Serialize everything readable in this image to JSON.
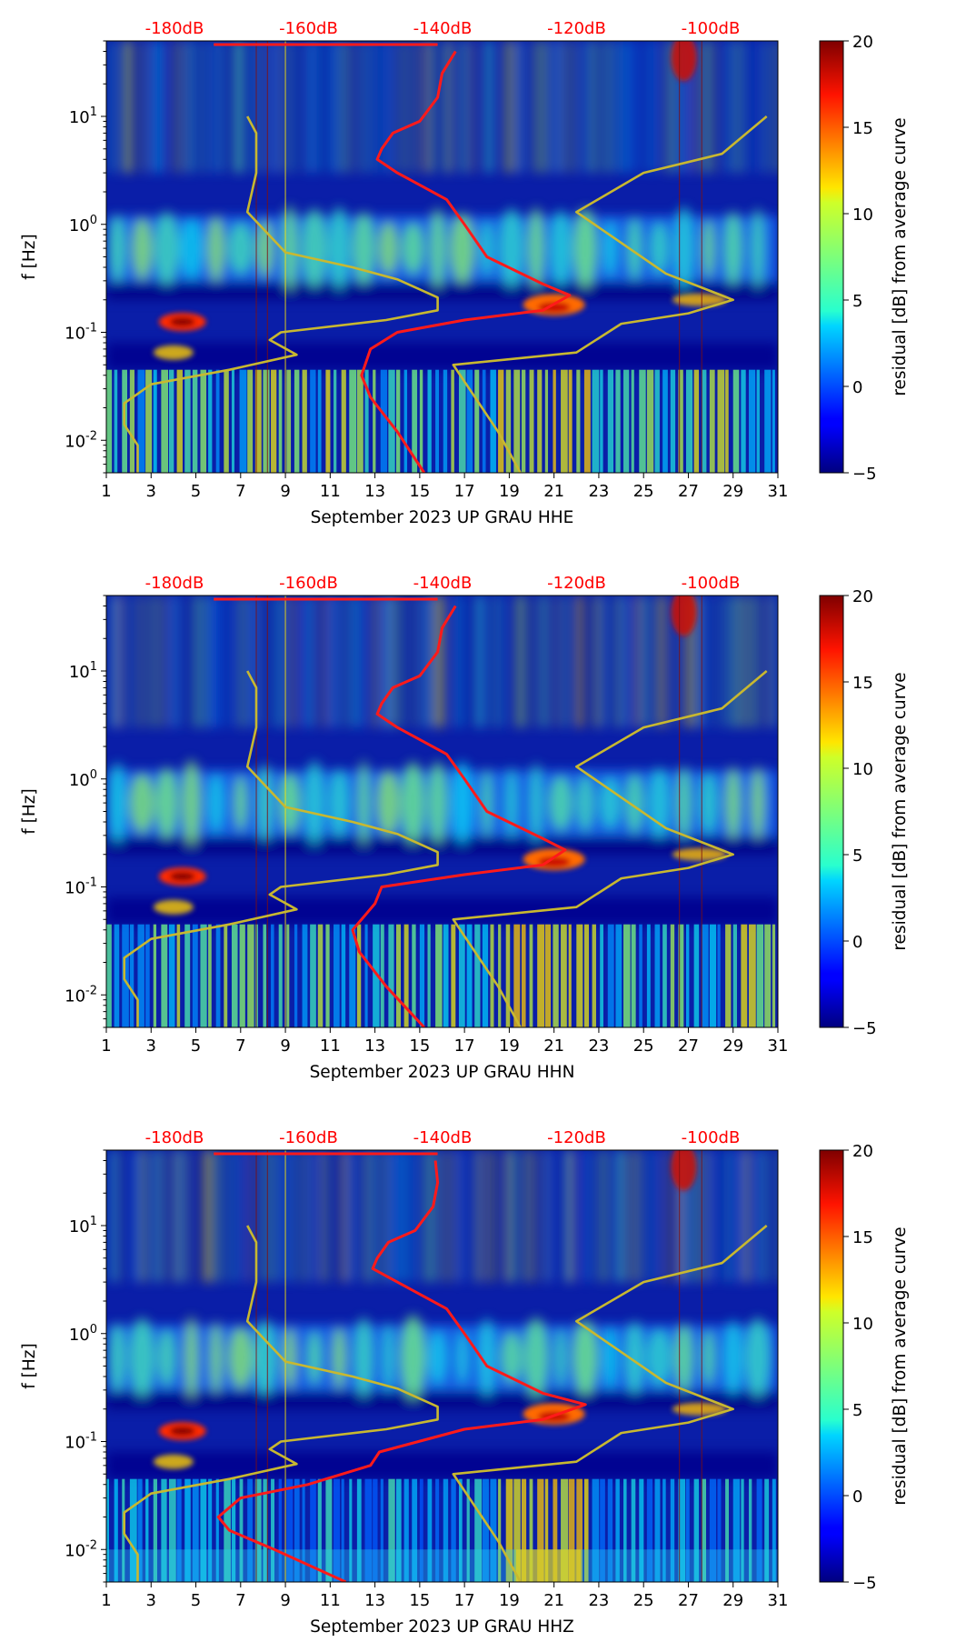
{
  "figure": {
    "colorbar_label": "residual [dB] from average curve",
    "colorbar_ticks": [
      -5,
      0,
      5,
      10,
      15,
      20
    ],
    "top_db_labels": [
      "-180dB",
      "-160dB",
      "-140dB",
      "-120dB",
      "-100dB"
    ],
    "y_label": "f [Hz]",
    "colors": {
      "db_label": "#ff0000",
      "noise_curve": "#ff1a1a",
      "nlnm_nhnm": "#c8b830",
      "background": "#00007f"
    }
  },
  "chart_data": [
    {
      "type": "heatmap",
      "title": "",
      "xlabel": "September 2023 UP GRAU  HHE",
      "ylabel": "f [Hz]",
      "x_ticks": [
        1,
        3,
        5,
        7,
        9,
        11,
        13,
        15,
        17,
        19,
        21,
        23,
        25,
        27,
        29,
        31
      ],
      "xlim": [
        1,
        31
      ],
      "y_ticks": [
        "10^-2",
        "10^-1",
        "10^0",
        "10^1"
      ],
      "ylim": [
        0.005,
        50
      ],
      "colorbar": {
        "label": "residual [dB] from average curve",
        "ticks": [
          -5,
          0,
          5,
          10,
          15,
          20
        ],
        "range": [
          -5,
          20
        ]
      },
      "top_axis": {
        "labels": [
          "-180dB",
          "-160dB",
          "-140dB",
          "-120dB",
          "-100dB"
        ]
      },
      "series": [
        {
          "name": "median noise",
          "color": "#ff1a1a",
          "points": [
            [
              15.2,
              0.005
            ],
            [
              14,
              0.012
            ],
            [
              12.8,
              0.025
            ],
            [
              12.4,
              0.04
            ],
            [
              12.8,
              0.07
            ],
            [
              14,
              0.1
            ],
            [
              17,
              0.13
            ],
            [
              20.5,
              0.16
            ],
            [
              21.7,
              0.22
            ],
            [
              20.5,
              0.28
            ],
            [
              18,
              0.5
            ],
            [
              17,
              1
            ],
            [
              16.2,
              1.7
            ],
            [
              14,
              3
            ],
            [
              13.1,
              4
            ],
            [
              13.3,
              5
            ],
            [
              13.8,
              7
            ],
            [
              15,
              9
            ],
            [
              15.8,
              15
            ],
            [
              16,
              25
            ],
            [
              16.6,
              40
            ]
          ]
        },
        {
          "name": "low noise model",
          "color": "#c8b830",
          "points": [
            [
              2.4,
              0.005
            ],
            [
              2.4,
              0.009
            ],
            [
              1.8,
              0.014
            ],
            [
              1.8,
              0.022
            ],
            [
              3,
              0.033
            ],
            [
              6.5,
              0.045
            ],
            [
              9.5,
              0.062
            ],
            [
              8.3,
              0.085
            ],
            [
              8.8,
              0.1
            ],
            [
              13.5,
              0.13
            ],
            [
              15.8,
              0.16
            ],
            [
              15.8,
              0.21
            ],
            [
              14,
              0.31
            ],
            [
              12,
              0.4
            ],
            [
              9,
              0.55
            ],
            [
              7.3,
              1.3
            ],
            [
              7.7,
              3
            ],
            [
              7.7,
              5
            ],
            [
              7.7,
              7
            ],
            [
              7.3,
              10
            ]
          ]
        },
        {
          "name": "high noise model",
          "color": "#c8b830",
          "points": [
            [
              19.5,
              0.005
            ],
            [
              18.5,
              0.012
            ],
            [
              16.5,
              0.05
            ],
            [
              22,
              0.065
            ],
            [
              24,
              0.12
            ],
            [
              27,
              0.15
            ],
            [
              29,
              0.2
            ],
            [
              26,
              0.35
            ],
            [
              22,
              1.3
            ],
            [
              25,
              3
            ],
            [
              28.5,
              4.5
            ],
            [
              30.5,
              10
            ]
          ]
        }
      ]
    },
    {
      "type": "heatmap",
      "title": "",
      "xlabel": "September 2023 UP GRAU  HHN",
      "ylabel": "f [Hz]",
      "x_ticks": [
        1,
        3,
        5,
        7,
        9,
        11,
        13,
        15,
        17,
        19,
        21,
        23,
        25,
        27,
        29,
        31
      ],
      "xlim": [
        1,
        31
      ],
      "y_ticks": [
        "10^-2",
        "10^-1",
        "10^0",
        "10^1"
      ],
      "ylim": [
        0.005,
        50
      ],
      "colorbar": {
        "label": "residual [dB] from average curve",
        "ticks": [
          -5,
          0,
          5,
          10,
          15,
          20
        ],
        "range": [
          -5,
          20
        ]
      },
      "top_axis": {
        "labels": [
          "-180dB",
          "-160dB",
          "-140dB",
          "-120dB",
          "-100dB"
        ]
      },
      "series": [
        {
          "name": "median noise",
          "color": "#ff1a1a",
          "points": [
            [
              15.2,
              0.005
            ],
            [
              13.5,
              0.012
            ],
            [
              12.3,
              0.025
            ],
            [
              12,
              0.04
            ],
            [
              13,
              0.07
            ],
            [
              13.3,
              0.1
            ],
            [
              17,
              0.13
            ],
            [
              20.5,
              0.16
            ],
            [
              21.5,
              0.22
            ],
            [
              20.5,
              0.28
            ],
            [
              18,
              0.5
            ],
            [
              17,
              1
            ],
            [
              16.2,
              1.7
            ],
            [
              14,
              3
            ],
            [
              13.1,
              4
            ],
            [
              13.3,
              5
            ],
            [
              13.8,
              7
            ],
            [
              15,
              9
            ],
            [
              15.8,
              15
            ],
            [
              16,
              25
            ],
            [
              16.6,
              40
            ]
          ]
        },
        {
          "name": "low noise model",
          "color": "#c8b830",
          "points": [
            [
              2.4,
              0.005
            ],
            [
              2.4,
              0.009
            ],
            [
              1.8,
              0.014
            ],
            [
              1.8,
              0.022
            ],
            [
              3,
              0.033
            ],
            [
              6.5,
              0.045
            ],
            [
              9.5,
              0.062
            ],
            [
              8.3,
              0.085
            ],
            [
              8.8,
              0.1
            ],
            [
              13.5,
              0.13
            ],
            [
              15.8,
              0.16
            ],
            [
              15.8,
              0.21
            ],
            [
              14,
              0.31
            ],
            [
              12,
              0.4
            ],
            [
              9,
              0.55
            ],
            [
              7.3,
              1.3
            ],
            [
              7.7,
              3
            ],
            [
              7.7,
              5
            ],
            [
              7.7,
              7
            ],
            [
              7.3,
              10
            ]
          ]
        },
        {
          "name": "high noise model",
          "color": "#c8b830",
          "points": [
            [
              19.5,
              0.005
            ],
            [
              18.5,
              0.012
            ],
            [
              16.5,
              0.05
            ],
            [
              22,
              0.065
            ],
            [
              24,
              0.12
            ],
            [
              27,
              0.15
            ],
            [
              29,
              0.2
            ],
            [
              26,
              0.35
            ],
            [
              22,
              1.3
            ],
            [
              25,
              3
            ],
            [
              28.5,
              4.5
            ],
            [
              30.5,
              10
            ]
          ]
        }
      ]
    },
    {
      "type": "heatmap",
      "title": "",
      "xlabel": "September 2023 UP GRAU  HHZ",
      "ylabel": "f [Hz]",
      "x_ticks": [
        1,
        3,
        5,
        7,
        9,
        11,
        13,
        15,
        17,
        19,
        21,
        23,
        25,
        27,
        29,
        31
      ],
      "xlim": [
        1,
        31
      ],
      "y_ticks": [
        "10^-2",
        "10^-1",
        "10^0",
        "10^1"
      ],
      "ylim": [
        0.005,
        50
      ],
      "colorbar": {
        "label": "residual [dB] from average curve",
        "ticks": [
          -5,
          0,
          5,
          10,
          15,
          20
        ],
        "range": [
          -5,
          20
        ]
      },
      "top_axis": {
        "labels": [
          "-180dB",
          "-160dB",
          "-140dB",
          "-120dB",
          "-100dB"
        ]
      },
      "series": [
        {
          "name": "median noise",
          "color": "#ff1a1a",
          "points": [
            [
              11.7,
              0.005
            ],
            [
              8.5,
              0.01
            ],
            [
              6.5,
              0.015
            ],
            [
              6,
              0.02
            ],
            [
              7,
              0.03
            ],
            [
              10,
              0.04
            ],
            [
              12.8,
              0.06
            ],
            [
              13.2,
              0.08
            ],
            [
              17,
              0.13
            ],
            [
              20.5,
              0.16
            ],
            [
              22.4,
              0.22
            ],
            [
              20.5,
              0.28
            ],
            [
              18,
              0.5
            ],
            [
              17,
              1
            ],
            [
              16.2,
              1.7
            ],
            [
              14,
              3
            ],
            [
              12.9,
              4
            ],
            [
              13.1,
              5
            ],
            [
              13.6,
              7
            ],
            [
              14.8,
              9
            ],
            [
              15.6,
              15
            ],
            [
              15.8,
              25
            ],
            [
              15.7,
              40
            ]
          ]
        },
        {
          "name": "low noise model",
          "color": "#c8b830",
          "points": [
            [
              2.4,
              0.005
            ],
            [
              2.4,
              0.009
            ],
            [
              1.8,
              0.014
            ],
            [
              1.8,
              0.022
            ],
            [
              3,
              0.033
            ],
            [
              6.5,
              0.045
            ],
            [
              9.5,
              0.062
            ],
            [
              8.3,
              0.085
            ],
            [
              8.8,
              0.1
            ],
            [
              13.5,
              0.13
            ],
            [
              15.8,
              0.16
            ],
            [
              15.8,
              0.21
            ],
            [
              14,
              0.31
            ],
            [
              12,
              0.4
            ],
            [
              9,
              0.55
            ],
            [
              7.3,
              1.3
            ],
            [
              7.7,
              3
            ],
            [
              7.7,
              5
            ],
            [
              7.7,
              7
            ],
            [
              7.3,
              10
            ]
          ]
        },
        {
          "name": "high noise model",
          "color": "#c8b830",
          "points": [
            [
              19.5,
              0.005
            ],
            [
              18.5,
              0.012
            ],
            [
              16.5,
              0.05
            ],
            [
              22,
              0.065
            ],
            [
              24,
              0.12
            ],
            [
              27,
              0.15
            ],
            [
              29,
              0.2
            ],
            [
              26,
              0.35
            ],
            [
              22,
              1.3
            ],
            [
              25,
              3
            ],
            [
              28.5,
              4.5
            ],
            [
              30.5,
              10
            ]
          ]
        }
      ]
    }
  ]
}
